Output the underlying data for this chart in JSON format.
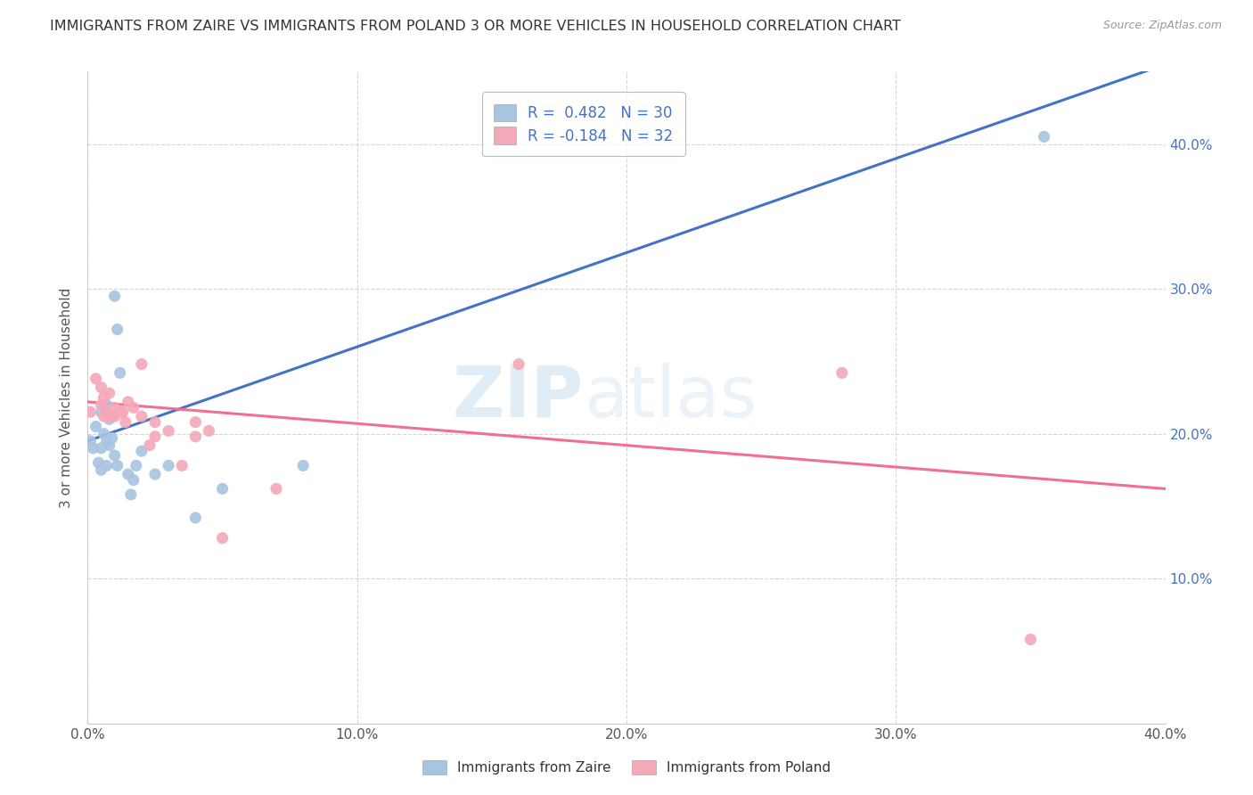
{
  "title": "IMMIGRANTS FROM ZAIRE VS IMMIGRANTS FROM POLAND 3 OR MORE VEHICLES IN HOUSEHOLD CORRELATION CHART",
  "source": "Source: ZipAtlas.com",
  "ylabel": "3 or more Vehicles in Household",
  "watermark_zip": "ZIP",
  "watermark_atlas": "atlas",
  "xmin": 0.0,
  "xmax": 0.4,
  "ymin": 0.0,
  "ymax": 0.45,
  "x_ticks": [
    0.0,
    0.1,
    0.2,
    0.3,
    0.4
  ],
  "x_tick_labels": [
    "0.0%",
    "10.0%",
    "20.0%",
    "30.0%",
    "40.0%"
  ],
  "y_ticks_right": [
    0.1,
    0.2,
    0.3,
    0.4
  ],
  "y_tick_labels_right": [
    "10.0%",
    "20.0%",
    "30.0%",
    "40.0%"
  ],
  "zaire_R": 0.482,
  "zaire_N": 30,
  "poland_R": -0.184,
  "poland_N": 32,
  "zaire_color": "#a8c4e0",
  "poland_color": "#f4a8b8",
  "zaire_line_color": "#4472c4",
  "poland_line_color": "#f07090",
  "zaire_scatter": [
    [
      0.001,
      0.195
    ],
    [
      0.002,
      0.19
    ],
    [
      0.003,
      0.205
    ],
    [
      0.004,
      0.18
    ],
    [
      0.005,
      0.19
    ],
    [
      0.005,
      0.215
    ],
    [
      0.005,
      0.175
    ],
    [
      0.006,
      0.2
    ],
    [
      0.007,
      0.22
    ],
    [
      0.007,
      0.195
    ],
    [
      0.007,
      0.178
    ],
    [
      0.008,
      0.192
    ],
    [
      0.008,
      0.21
    ],
    [
      0.009,
      0.197
    ],
    [
      0.01,
      0.185
    ],
    [
      0.01,
      0.295
    ],
    [
      0.011,
      0.272
    ],
    [
      0.011,
      0.178
    ],
    [
      0.012,
      0.242
    ],
    [
      0.015,
      0.172
    ],
    [
      0.016,
      0.158
    ],
    [
      0.017,
      0.168
    ],
    [
      0.018,
      0.178
    ],
    [
      0.02,
      0.188
    ],
    [
      0.025,
      0.172
    ],
    [
      0.03,
      0.178
    ],
    [
      0.04,
      0.142
    ],
    [
      0.05,
      0.162
    ],
    [
      0.355,
      0.405
    ],
    [
      0.08,
      0.178
    ]
  ],
  "poland_scatter": [
    [
      0.001,
      0.215
    ],
    [
      0.003,
      0.238
    ],
    [
      0.005,
      0.232
    ],
    [
      0.005,
      0.22
    ],
    [
      0.006,
      0.212
    ],
    [
      0.006,
      0.225
    ],
    [
      0.007,
      0.215
    ],
    [
      0.008,
      0.212
    ],
    [
      0.008,
      0.228
    ],
    [
      0.009,
      0.212
    ],
    [
      0.01,
      0.218
    ],
    [
      0.01,
      0.212
    ],
    [
      0.012,
      0.215
    ],
    [
      0.013,
      0.215
    ],
    [
      0.014,
      0.208
    ],
    [
      0.015,
      0.222
    ],
    [
      0.017,
      0.218
    ],
    [
      0.02,
      0.212
    ],
    [
      0.02,
      0.248
    ],
    [
      0.023,
      0.192
    ],
    [
      0.025,
      0.198
    ],
    [
      0.025,
      0.208
    ],
    [
      0.03,
      0.202
    ],
    [
      0.035,
      0.178
    ],
    [
      0.04,
      0.208
    ],
    [
      0.04,
      0.198
    ],
    [
      0.045,
      0.202
    ],
    [
      0.05,
      0.128
    ],
    [
      0.07,
      0.162
    ],
    [
      0.16,
      0.248
    ],
    [
      0.28,
      0.242
    ],
    [
      0.35,
      0.058
    ]
  ],
  "zaire_trendline": [
    [
      0.0,
      0.195
    ],
    [
      0.4,
      0.455
    ]
  ],
  "poland_trendline": [
    [
      0.0,
      0.222
    ],
    [
      0.4,
      0.162
    ]
  ]
}
